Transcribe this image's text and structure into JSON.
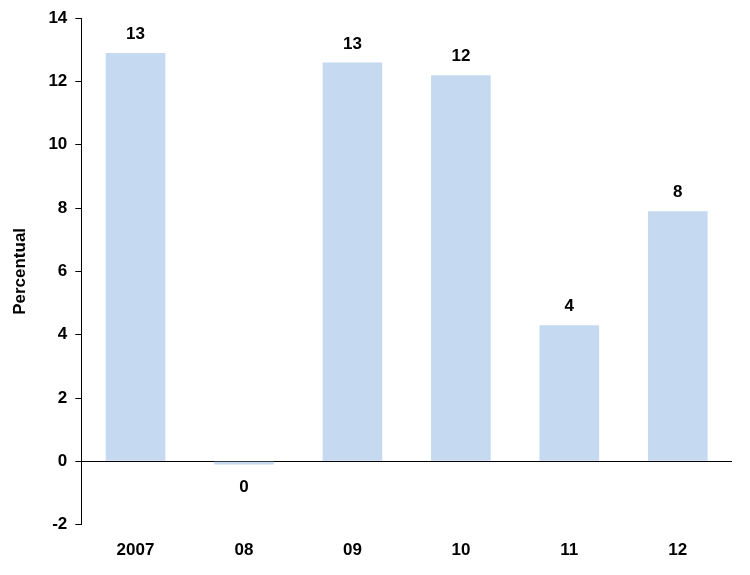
{
  "chart_data": {
    "type": "bar",
    "y_label": "Percentual",
    "categories": [
      "2007",
      "08",
      "09",
      "10",
      "11",
      "12"
    ],
    "values": [
      12.9,
      -0.1,
      12.6,
      12.2,
      4.3,
      7.9
    ],
    "value_labels": [
      "13",
      "0",
      "13",
      "12",
      "4",
      "8"
    ],
    "color": "#c5d9f1",
    "ylim": [
      -2,
      14
    ],
    "yticks": [
      -2,
      0,
      2,
      4,
      6,
      8,
      10,
      12,
      14
    ],
    "grid": false,
    "data_labels": true
  }
}
